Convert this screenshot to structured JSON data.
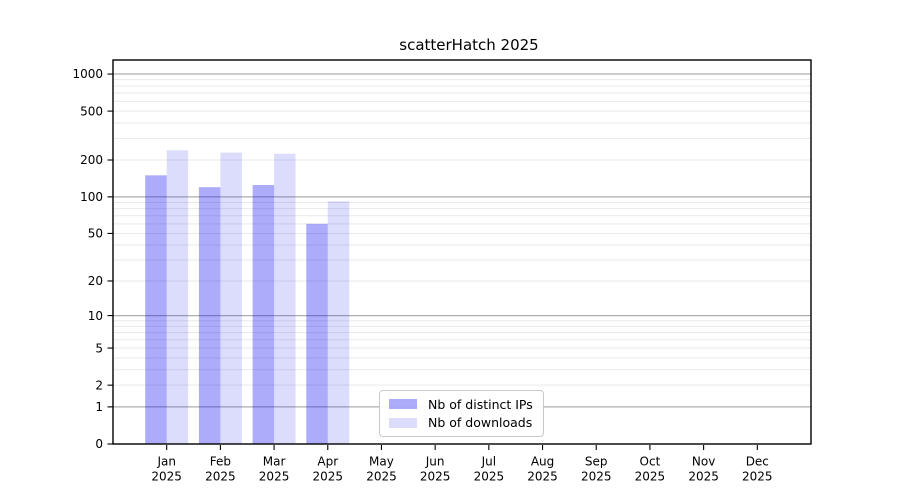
{
  "chart_data": {
    "type": "bar",
    "title": "scatterHatch 2025",
    "categories": [
      "Jan",
      "Feb",
      "Mar",
      "Apr",
      "May",
      "Jun",
      "Jul",
      "Aug",
      "Sep",
      "Oct",
      "Nov",
      "Dec"
    ],
    "category_year": "2025",
    "series": [
      {
        "name": "Nb of distinct IPs",
        "values": [
          150,
          120,
          125,
          60,
          0,
          0,
          0,
          0,
          0,
          0,
          0,
          0
        ]
      },
      {
        "name": "Nb of downloads",
        "values": [
          240,
          230,
          225,
          92,
          0,
          0,
          0,
          0,
          0,
          0,
          0,
          0
        ]
      }
    ],
    "xlabel": "",
    "ylabel": "",
    "yscale": "log1p",
    "ylim": [
      0,
      1300
    ],
    "ytick_labels": [
      "0",
      "1",
      "2",
      "5",
      "10",
      "20",
      "50",
      "100",
      "200",
      "500",
      "1000"
    ],
    "ytick_values": [
      0,
      1,
      2,
      5,
      10,
      20,
      50,
      100,
      200,
      500,
      1000
    ],
    "grid": {
      "major_at": [
        1,
        10,
        100,
        1000
      ],
      "minor_mantissas": [
        2,
        3,
        4,
        5,
        6,
        7,
        8,
        9
      ],
      "minor_decades": [
        1,
        10,
        100
      ]
    },
    "legend_position": "lower-center-inside",
    "colors": {
      "bar_distinct_ips": "rgba(18,18,240,0.35)",
      "bar_downloads": "rgba(18,18,240,0.15)",
      "grid_major": "#aeaeae",
      "grid_minor": "#e9e9e9",
      "axis": "#000000",
      "text": "#000000"
    }
  }
}
